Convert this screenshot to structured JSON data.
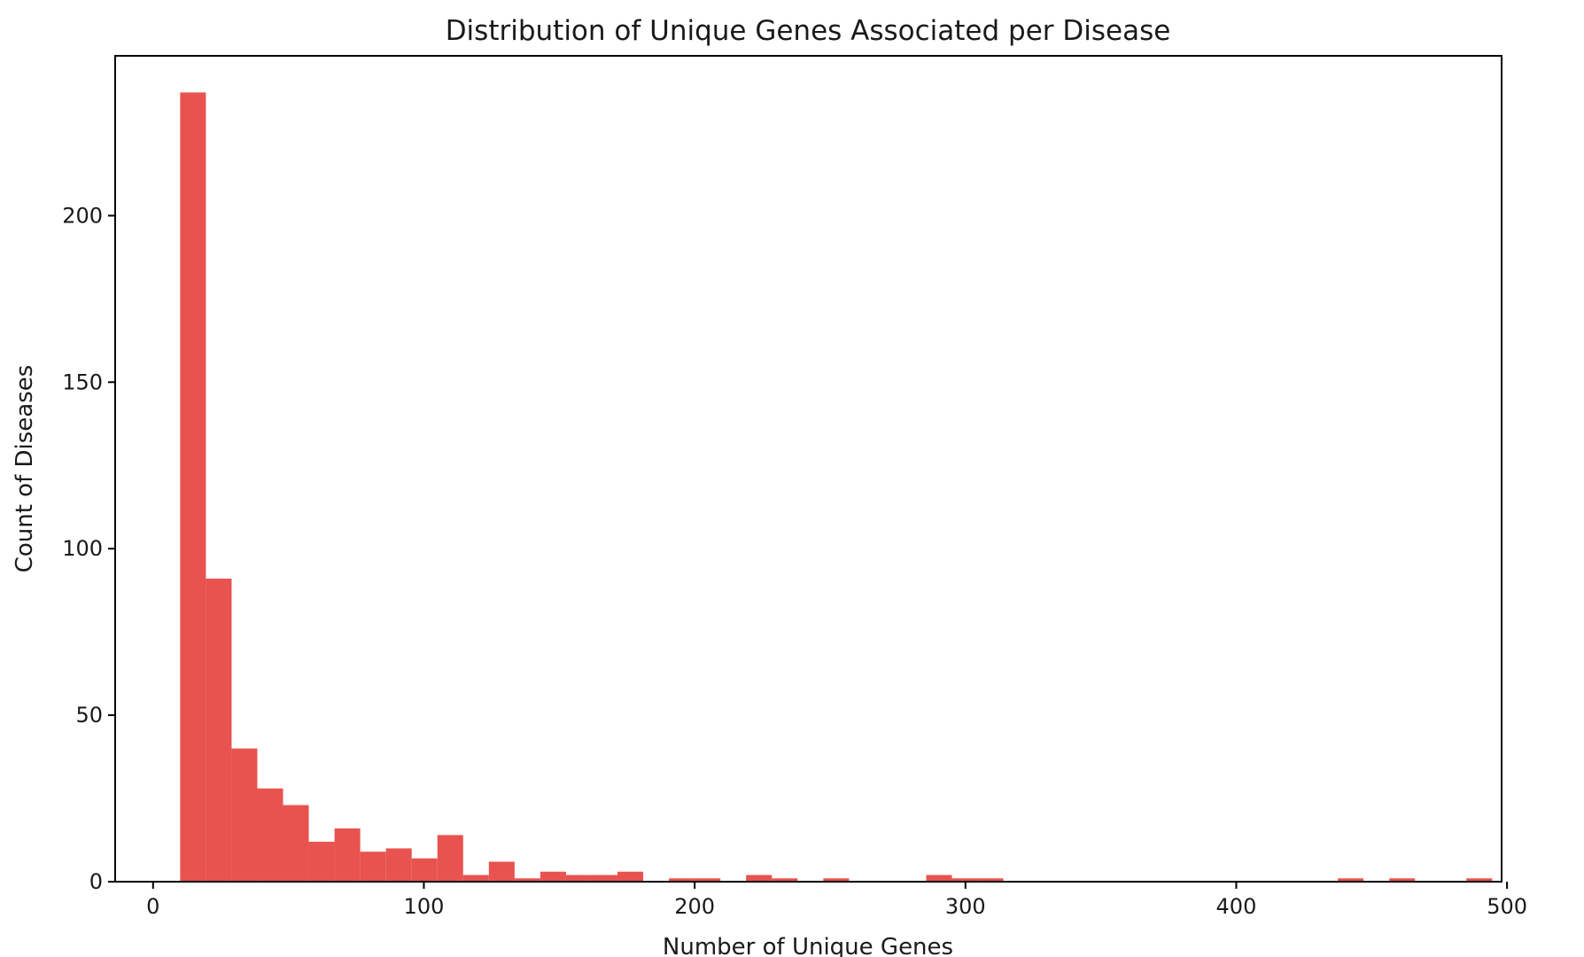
{
  "chart_data": {
    "type": "bar",
    "title": "Distribution of Unique Genes Associated per Disease",
    "xlabel": "Number of Unique Genes",
    "ylabel": "Count of Diseases",
    "xlim": [
      -14,
      498
    ],
    "ylim": [
      0,
      248
    ],
    "xticks": [
      0,
      100,
      200,
      300,
      400,
      500
    ],
    "yticks": [
      0,
      50,
      100,
      150,
      200
    ],
    "grid": false,
    "legend": "none",
    "color": "#e8534f",
    "bin_start": 10,
    "bin_width": 9.5,
    "counts": [
      237,
      91,
      40,
      28,
      23,
      12,
      16,
      9,
      10,
      7,
      14,
      2,
      6,
      1,
      3,
      2,
      2,
      3,
      0,
      1,
      1,
      0,
      2,
      1,
      0,
      1,
      0,
      0,
      0,
      2,
      1,
      1,
      0,
      0,
      0,
      0,
      0,
      0,
      0,
      0,
      0,
      0,
      0,
      0,
      0,
      1,
      0,
      1,
      0,
      0,
      1
    ]
  }
}
